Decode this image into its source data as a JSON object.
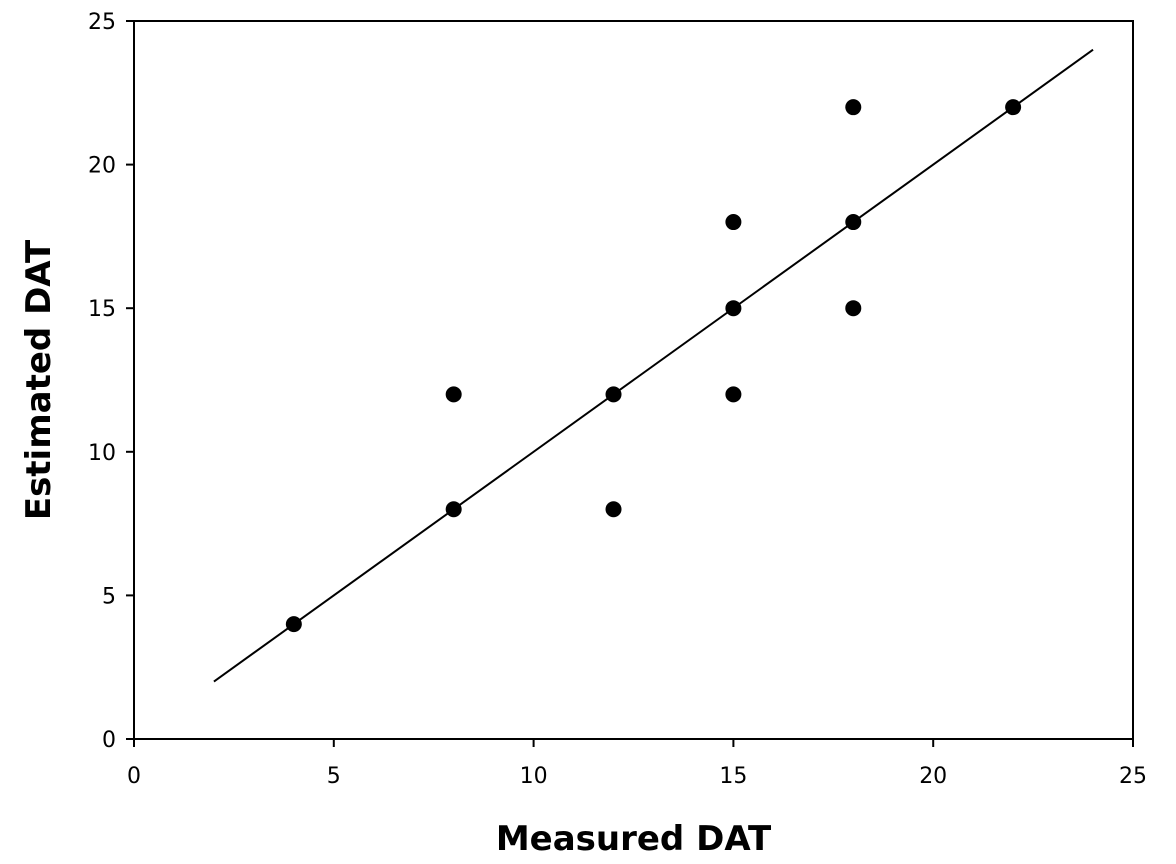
{
  "chart_data": {
    "type": "scatter",
    "title": "",
    "xlabel": "Measured DAT",
    "ylabel": "Estimated DAT",
    "xlim": [
      0,
      25
    ],
    "ylim": [
      0,
      25
    ],
    "xticks": [
      0,
      5,
      10,
      15,
      20,
      25
    ],
    "yticks": [
      0,
      5,
      10,
      15,
      20,
      25
    ],
    "grid": false,
    "legend": "none",
    "series": [
      {
        "type": "scatter",
        "marker_color": "#000000",
        "points": [
          {
            "x": 4,
            "y": 4
          },
          {
            "x": 8,
            "y": 8
          },
          {
            "x": 8,
            "y": 12
          },
          {
            "x": 12,
            "y": 8
          },
          {
            "x": 12,
            "y": 12
          },
          {
            "x": 15,
            "y": 12
          },
          {
            "x": 15,
            "y": 15
          },
          {
            "x": 15,
            "y": 18
          },
          {
            "x": 18,
            "y": 15
          },
          {
            "x": 18,
            "y": 18
          },
          {
            "x": 18,
            "y": 22
          },
          {
            "x": 22,
            "y": 22
          }
        ]
      }
    ],
    "reference_line": {
      "type": "line",
      "color": "#000000",
      "x": [
        2,
        24
      ],
      "y": [
        2,
        24
      ]
    }
  }
}
